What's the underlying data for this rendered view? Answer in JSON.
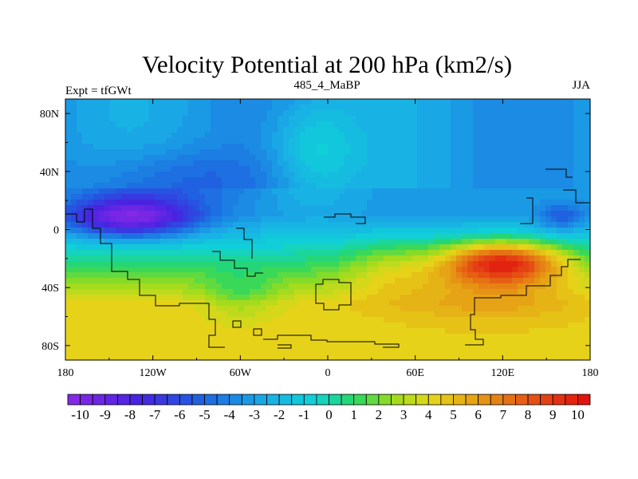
{
  "chart_data": {
    "type": "heatmap",
    "title": "Velocity Potential at 200 hPa (km2/s)",
    "left_string": "Expt = tfGWt",
    "center_string": "485_4_MaBP",
    "right_string": "JJA",
    "x_ticks": [
      {
        "value": 180,
        "label": "180"
      },
      {
        "value": 240,
        "label": "120W"
      },
      {
        "value": 300,
        "label": "60W"
      },
      {
        "value": 360,
        "label": "0"
      },
      {
        "value": 420,
        "label": "60E"
      },
      {
        "value": 480,
        "label": "120E"
      },
      {
        "value": 540,
        "label": "180"
      }
    ],
    "y_ticks": [
      {
        "value": 80,
        "label": "80N"
      },
      {
        "value": 40,
        "label": "40N"
      },
      {
        "value": 0,
        "label": "0"
      },
      {
        "value": -40,
        "label": "40S"
      },
      {
        "value": -80,
        "label": "80S"
      }
    ],
    "xlim": [
      180,
      540
    ],
    "ylim": [
      -90,
      90
    ],
    "colorbar": {
      "min": -10.5,
      "max": 10.5,
      "step": 0.5,
      "labels": [
        "-10",
        "-9",
        "-8",
        "-7",
        "-6",
        "-5",
        "-4",
        "-3",
        "-2",
        "-1",
        "0",
        "1",
        "2",
        "3",
        "4",
        "5",
        "6",
        "7",
        "8",
        "9",
        "10"
      ],
      "label_values": [
        -10,
        -9,
        -8,
        -7,
        -6,
        -5,
        -4,
        -3,
        -2,
        -1,
        0,
        1,
        2,
        3,
        4,
        5,
        6,
        7,
        8,
        9,
        10
      ]
    },
    "field_centers": [
      {
        "name": "base_north",
        "lon": 0,
        "lat": 60,
        "value": -3
      },
      {
        "name": "min_east_pacific",
        "lon": 225,
        "lat": 10,
        "value": -9.8,
        "spread_lon": 40,
        "spread_lat": 14
      },
      {
        "name": "max_west_pacific",
        "lon": 485,
        "lat": -25,
        "value": 8.6,
        "spread_lon": 35,
        "spread_lat": 16
      },
      {
        "name": "secondary_min_north_pacific",
        "lon": 520,
        "lat": 10,
        "value": -5,
        "spread_lon": 12,
        "spread_lat": 10
      },
      {
        "name": "southern_plateau",
        "lon": 360,
        "lat": -60,
        "value": 4.5
      }
    ]
  }
}
